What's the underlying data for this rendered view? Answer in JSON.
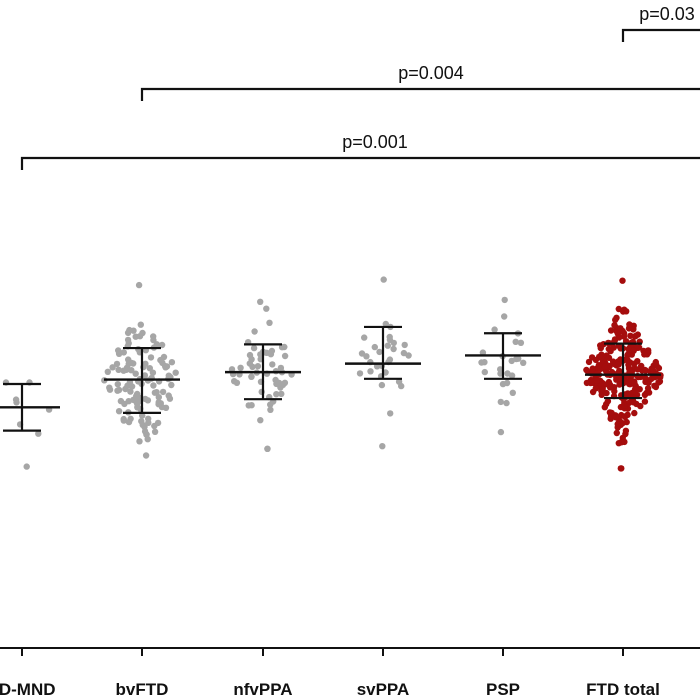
{
  "chart_data": {
    "type": "scatter",
    "categories": [
      "FTD-MND",
      "bvFTD",
      "nfvPPA",
      "svPPA",
      "PSP",
      "FTD total"
    ],
    "category_labels": [
      "TD-MND",
      "bvFTD",
      "nfvPPA",
      "svPPA",
      "PSP",
      "FTD total"
    ],
    "colors": {
      "grey": "#a6a6a6",
      "red": "#a50d0d",
      "line": "#111111"
    },
    "groups": [
      {
        "label": "FTD-MND",
        "color": "grey",
        "mean": 0.0,
        "sd_low": -0.63,
        "sd_high": 0.63,
        "n": 8,
        "min": -1.6,
        "max": 0.67
      },
      {
        "label": "bvFTD",
        "color": "grey",
        "mean": 0.75,
        "sd_low": -0.15,
        "sd_high": 1.6,
        "n": 120,
        "min": -1.3,
        "max": 3.3
      },
      {
        "label": "nfvPPA",
        "color": "grey",
        "mean": 0.95,
        "sd_low": 0.22,
        "sd_high": 1.7,
        "n": 55,
        "min": -1.12,
        "max": 2.85
      },
      {
        "label": "svPPA",
        "color": "grey",
        "mean": 1.18,
        "sd_low": 0.77,
        "sd_high": 2.17,
        "n": 30,
        "min": -1.05,
        "max": 3.45
      },
      {
        "label": "PSP",
        "color": "grey",
        "mean": 1.4,
        "sd_low": 0.77,
        "sd_high": 2.0,
        "n": 25,
        "min": -0.67,
        "max": 2.9
      },
      {
        "label": "FTD total",
        "color": "red",
        "mean": 0.88,
        "sd_low": 0.25,
        "sd_high": 1.72,
        "n": 260,
        "min": -1.65,
        "max": 3.42
      }
    ],
    "comparisons": [
      {
        "from": "FTD total",
        "label": "p=0.03"
      },
      {
        "from": "bvFTD",
        "label": "p=0.004"
      },
      {
        "from": "FTD-MND",
        "label": "p=0.001"
      }
    ],
    "ylim": [
      -6.5,
      11
    ],
    "grid": false
  }
}
